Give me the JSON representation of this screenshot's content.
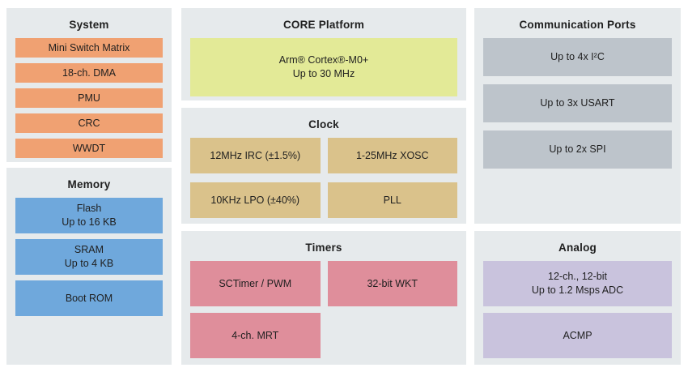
{
  "diagram": {
    "system": {
      "title": "System",
      "blocks": [
        "Mini Switch Matrix",
        "18-ch. DMA",
        "PMU",
        "CRC",
        "WWDT"
      ]
    },
    "memory": {
      "title": "Memory",
      "blocks": [
        "Flash\nUp to 16 KB",
        "SRAM\nUp to 4 KB",
        "Boot ROM"
      ]
    },
    "core": {
      "title": "CORE Platform",
      "blocks": [
        "Arm® Cortex®-M0+\nUp to 30 MHz"
      ]
    },
    "clock": {
      "title": "Clock",
      "blocks": [
        "12MHz IRC (±1.5%)",
        "1-25MHz XOSC",
        "10KHz LPO (±40%)",
        "PLL"
      ]
    },
    "timers": {
      "title": "Timers",
      "blocks": [
        "SCTimer / PWM",
        "32-bit WKT",
        "4-ch. MRT"
      ]
    },
    "comm": {
      "title": "Communication Ports",
      "blocks": [
        "Up to 4x I²C",
        "Up to 3x USART",
        "Up to 2x SPI"
      ]
    },
    "analog": {
      "title": "Analog",
      "blocks": [
        "12-ch., 12-bit\nUp to 1.2 Msps ADC",
        "ACMP"
      ]
    }
  },
  "colors": {
    "panel_bg": "#E6EAEC",
    "system_block": "#F0A172",
    "memory_block": "#6FA8DC",
    "core_block": "#E3EA97",
    "clock_block": "#DAC28B",
    "timers_block": "#DF8E9B",
    "comm_block": "#BDC4CB",
    "analog_block": "#C9C3DD",
    "text": "#1F1F1F"
  }
}
